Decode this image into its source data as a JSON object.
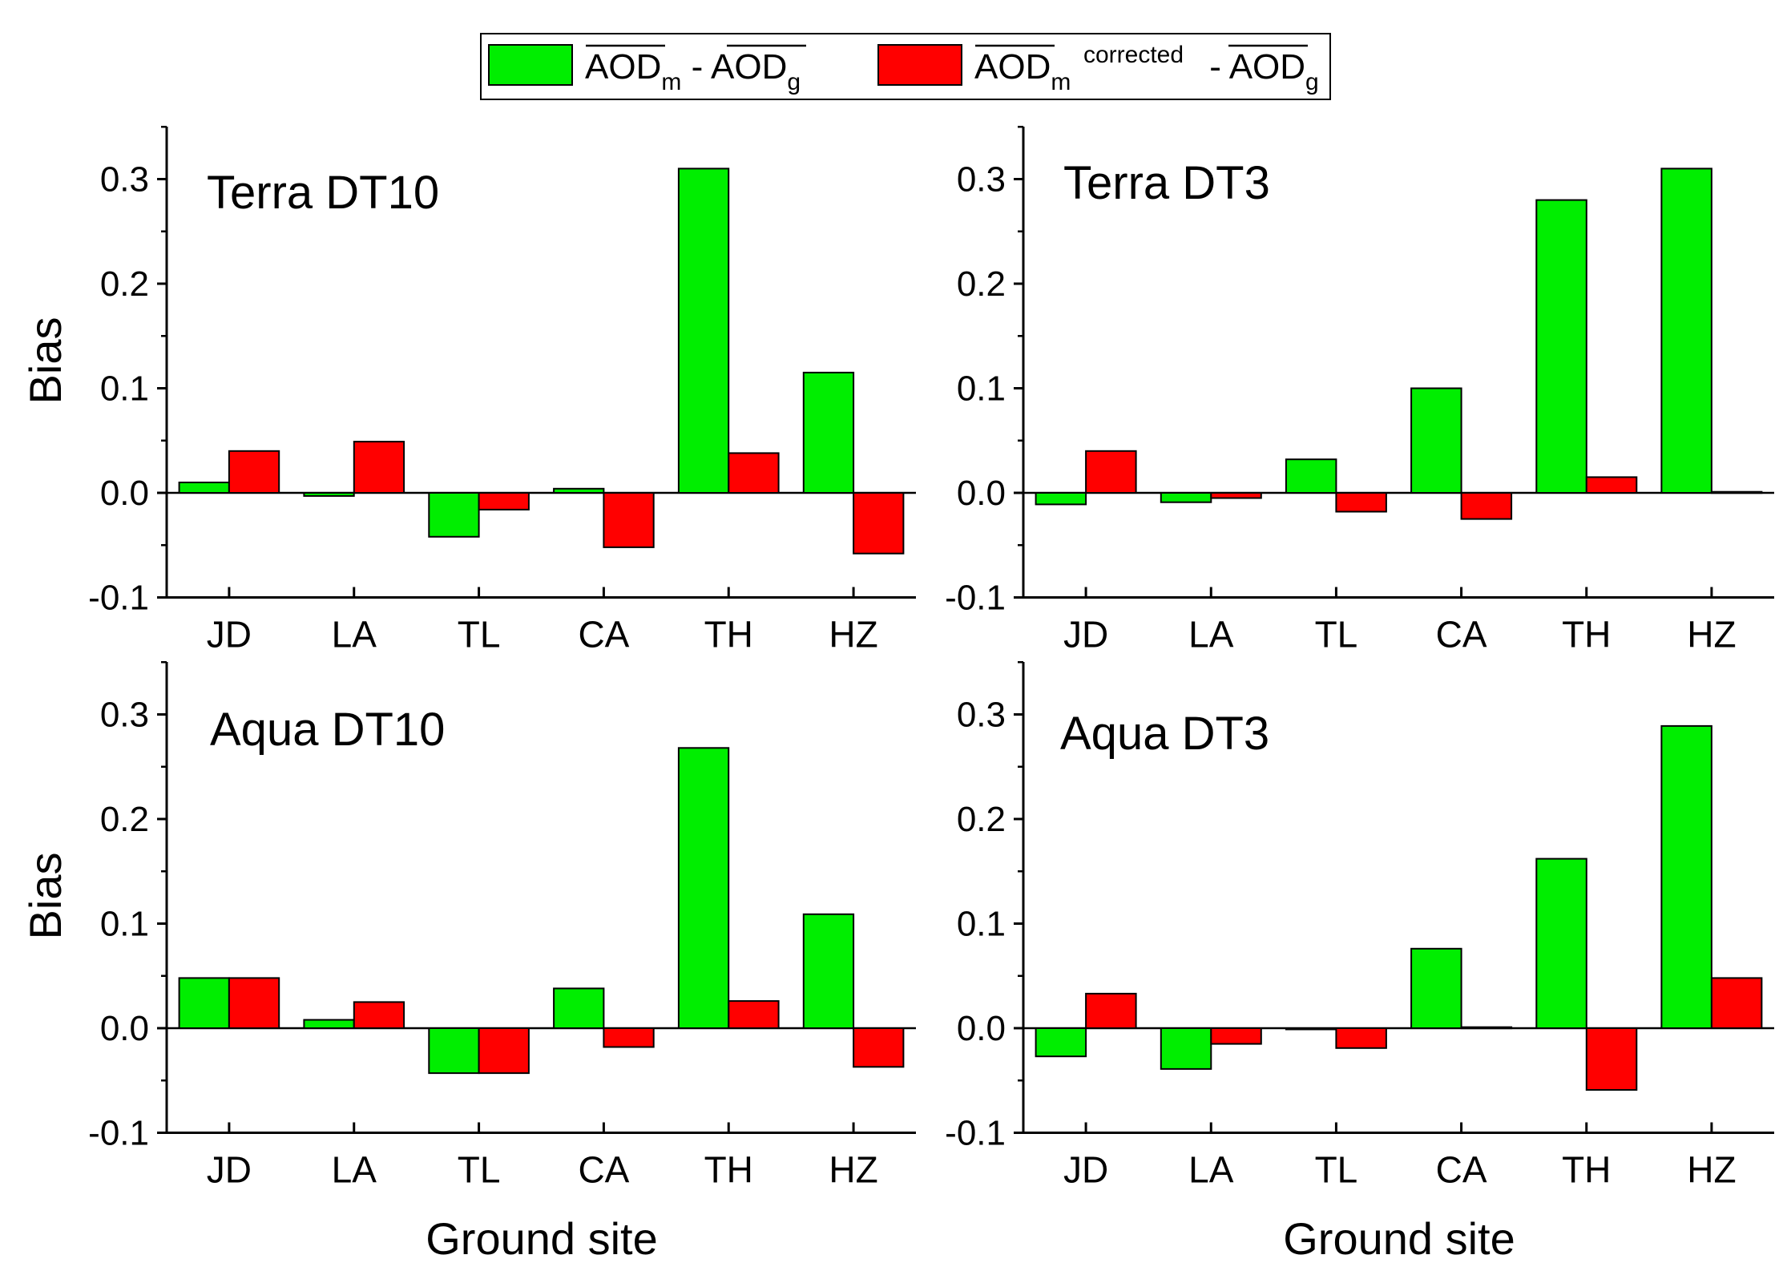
{
  "chart_data": {
    "type": "bar",
    "categories": [
      "JD",
      "LA",
      "TL",
      "CA",
      "TH",
      "HZ"
    ],
    "xlabel": "Ground site",
    "ylabel": "Bias",
    "ylim": [
      -0.1,
      0.35
    ],
    "yticks": [
      "-0.1",
      "0.0",
      "0.1",
      "0.2",
      "0.3"
    ],
    "series_colors": [
      "#00ee00",
      "#ff0000"
    ],
    "legend": {
      "position": "top-center",
      "entries": [
        {
          "color": "#00ee00",
          "main1": "AOD",
          "sub1": "m",
          "sep": " - ",
          "main2": "AOD",
          "sub2": "g"
        },
        {
          "color": "#ff0000",
          "main1": "AOD",
          "sub1": "m",
          "sup1": "corrected",
          "sep": " - ",
          "main2": "AOD",
          "sub2": "g"
        }
      ]
    },
    "panels": [
      {
        "title": "Terra DT10",
        "series": [
          {
            "name": "AODm - AODg",
            "values": [
              0.01,
              -0.003,
              -0.042,
              0.004,
              0.31,
              0.115
            ]
          },
          {
            "name": "AODm corrected - AODg",
            "values": [
              0.04,
              0.049,
              -0.016,
              -0.052,
              0.038,
              -0.058
            ]
          }
        ]
      },
      {
        "title": "Terra DT3",
        "series": [
          {
            "name": "AODm - AODg",
            "values": [
              -0.011,
              -0.009,
              0.032,
              0.1,
              0.28,
              0.31
            ]
          },
          {
            "name": "AODm corrected - AODg",
            "values": [
              0.04,
              -0.005,
              -0.018,
              -0.025,
              0.015,
              0.001
            ]
          }
        ]
      },
      {
        "title": "Aqua DT10",
        "series": [
          {
            "name": "AODm - AODg",
            "values": [
              0.048,
              0.008,
              -0.043,
              0.038,
              0.268,
              0.109
            ]
          },
          {
            "name": "AODm corrected - AODg",
            "values": [
              0.048,
              0.025,
              -0.043,
              -0.018,
              0.026,
              -0.037
            ]
          }
        ]
      },
      {
        "title": "Aqua DT3",
        "series": [
          {
            "name": "AODm - AODg",
            "values": [
              -0.027,
              -0.039,
              0.0,
              0.076,
              0.162,
              0.289
            ]
          },
          {
            "name": "AODm corrected - AODg",
            "values": [
              0.033,
              -0.015,
              -0.019,
              0.001,
              -0.059,
              0.048
            ]
          }
        ]
      }
    ]
  }
}
